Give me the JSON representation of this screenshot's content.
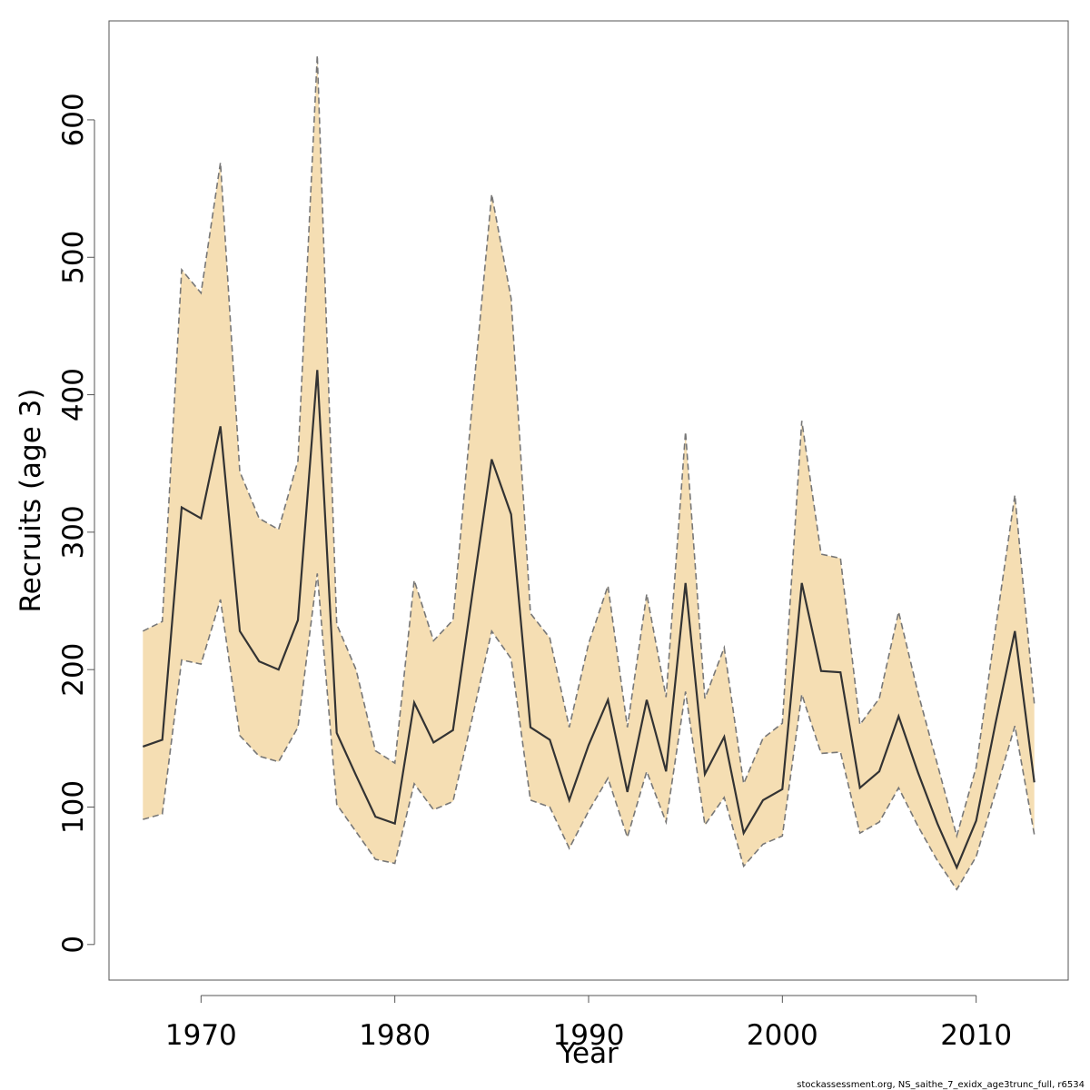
{
  "chart_data": {
    "type": "area",
    "xlabel": "Year",
    "ylabel": "Recruits (age 3)",
    "xlim": [
      1965.25,
      2014.75
    ],
    "ylim": [
      -25.9,
      672
    ],
    "x_ticks": [
      1970,
      1980,
      1990,
      2000,
      2010
    ],
    "y_ticks": [
      0,
      100,
      200,
      300,
      400,
      500,
      600
    ],
    "x_tick_labels": [
      "1970",
      "1980",
      "1990",
      "2000",
      "2010"
    ],
    "y_tick_labels": [
      "0",
      "100",
      "200",
      "300",
      "400",
      "500",
      "600"
    ],
    "grid": false,
    "legend": "none",
    "colors": {
      "band_fill": "#F5DEB3",
      "estimate_line": "#333333",
      "bound_line": "#777777",
      "frame": "#555555"
    },
    "years": [
      1967,
      1968,
      1969,
      1970,
      1971,
      1972,
      1973,
      1974,
      1975,
      1976,
      1977,
      1978,
      1979,
      1980,
      1981,
      1982,
      1983,
      1984,
      1985,
      1986,
      1987,
      1988,
      1989,
      1990,
      1991,
      1992,
      1993,
      1994,
      1995,
      1996,
      1997,
      1998,
      1999,
      2000,
      2001,
      2002,
      2003,
      2004,
      2005,
      2006,
      2007,
      2008,
      2009,
      2010,
      2011,
      2012,
      2013
    ],
    "series": [
      {
        "role": "estimate",
        "values": [
          144,
          149,
          318,
          310,
          377,
          228,
          206,
          200,
          236,
          418,
          154,
          123,
          93,
          88,
          176,
          147,
          156,
          255,
          353,
          313,
          158,
          149,
          105,
          145,
          178,
          111,
          178,
          126,
          263,
          124,
          151,
          81,
          105,
          113,
          263,
          199,
          198,
          114,
          126,
          166,
          125,
          88,
          56,
          90,
          161,
          228,
          118
        ]
      },
      {
        "role": "upper",
        "values": [
          228,
          235,
          491,
          474,
          569,
          344,
          310,
          302,
          352,
          647,
          233,
          200,
          141,
          132,
          265,
          221,
          236,
          394,
          546,
          470,
          241,
          223,
          158,
          219,
          261,
          158,
          255,
          180,
          373,
          179,
          216,
          117,
          150,
          161,
          381,
          284,
          281,
          160,
          179,
          242,
          183,
          131,
          79,
          129,
          230,
          327,
          175
        ]
      },
      {
        "role": "lower",
        "values": [
          91,
          95,
          207,
          204,
          251,
          152,
          137,
          133,
          158,
          270,
          102,
          82,
          62,
          59,
          117,
          98,
          104,
          165,
          228,
          208,
          105,
          100,
          70,
          97,
          121,
          78,
          126,
          89,
          184,
          87,
          107,
          57,
          73,
          79,
          182,
          139,
          140,
          81,
          89,
          114,
          86,
          61,
          40,
          64,
          111,
          159,
          80
        ]
      }
    ]
  },
  "footer": {
    "note": "stockassessment.org, NS_saithe_7_exidx_age3trunc_full, r6534"
  }
}
